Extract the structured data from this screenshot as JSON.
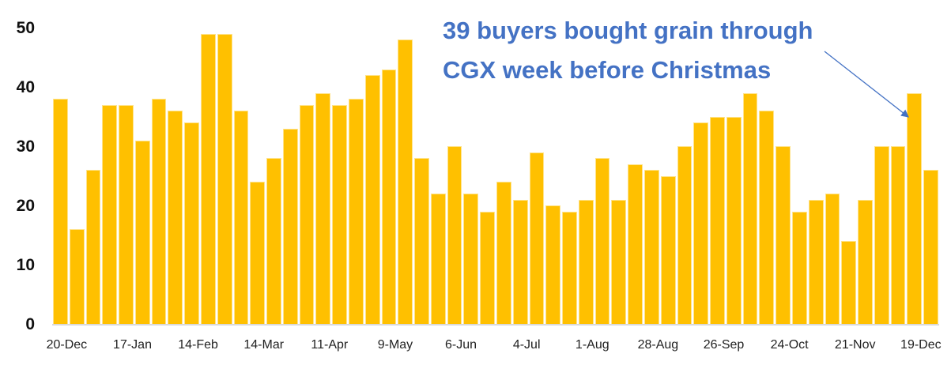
{
  "chart_data": {
    "type": "bar",
    "title": "",
    "xlabel": "",
    "ylabel": "",
    "ylim": [
      0,
      50
    ],
    "yticks": [
      0,
      10,
      20,
      30,
      40,
      50
    ],
    "grid": false,
    "legend": null,
    "bar_color": "#FFC000",
    "annotation_color": "#4472C4",
    "x_tick_labels": [
      "20-Dec",
      "17-Jan",
      "14-Feb",
      "14-Mar",
      "11-Apr",
      "9-May",
      "6-Jun",
      "4-Jul",
      "1-Aug",
      "28-Aug",
      "26-Sep",
      "24-Oct",
      "21-Nov",
      "19-Dec"
    ],
    "x_tick_every": 4,
    "values": [
      38,
      16,
      26,
      37,
      37,
      31,
      38,
      36,
      34,
      49,
      49,
      36,
      24,
      28,
      33,
      37,
      39,
      37,
      38,
      42,
      43,
      48,
      28,
      22,
      30,
      22,
      19,
      24,
      21,
      29,
      20,
      19,
      21,
      28,
      21,
      27,
      26,
      25,
      30,
      34,
      35,
      35,
      39,
      36,
      30,
      19,
      21,
      22,
      14,
      21,
      30,
      30,
      39,
      26
    ],
    "annotations": [
      {
        "text_line1": "39 buyers bought grain through",
        "text_line2": "CGX week before Christmas",
        "points_to_index": 52,
        "points_to_value": 39
      }
    ]
  }
}
